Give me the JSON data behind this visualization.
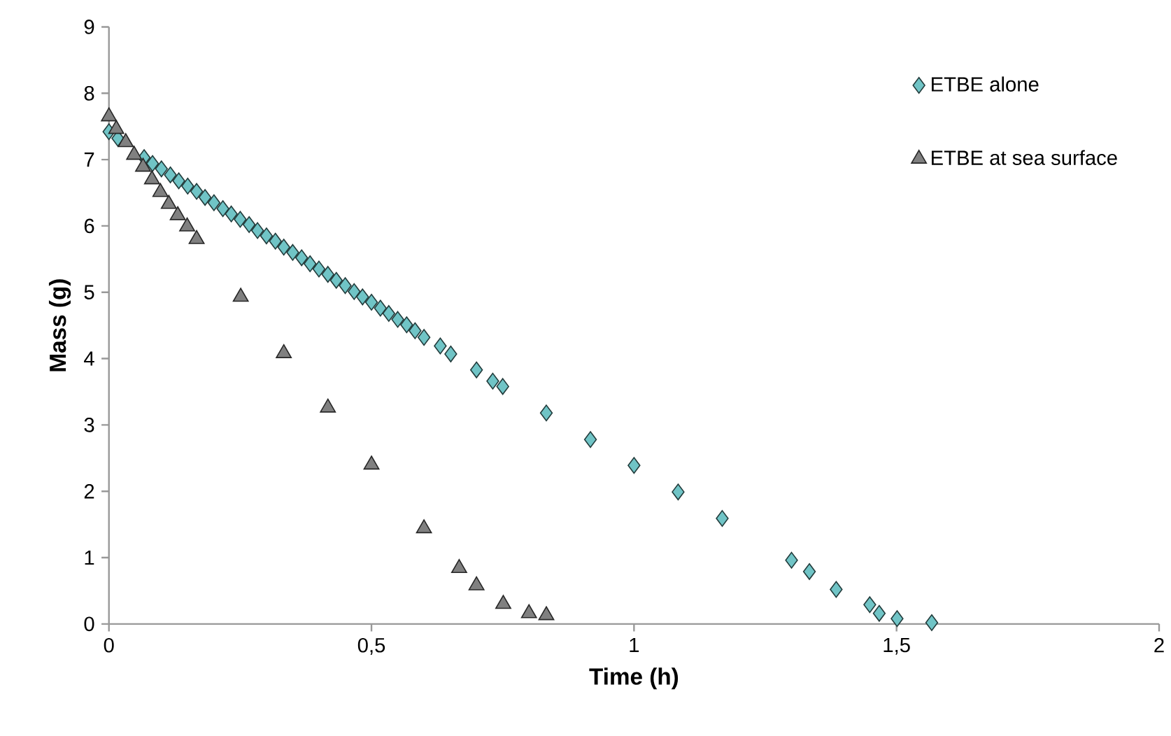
{
  "chart_data": {
    "type": "scatter",
    "xlabel": "Time (h)",
    "ylabel": "Mass (g)",
    "xlim": [
      0,
      2
    ],
    "ylim": [
      0,
      9
    ],
    "xticks": [
      0,
      {
        "value": 0.5,
        "label": "0,5"
      },
      1,
      {
        "value": 1.5,
        "label": "1,5"
      },
      2
    ],
    "yticks": [
      0,
      1,
      2,
      3,
      4,
      5,
      6,
      7,
      8,
      9
    ],
    "grid": false,
    "legend": "top right",
    "series": [
      {
        "name": "ETBE alone",
        "color": "#70c4c6",
        "marker": "diamond",
        "x": [
          0,
          0.017,
          0.033,
          0.05,
          0.067,
          0.083,
          0.1,
          0.117,
          0.133,
          0.15,
          0.167,
          0.183,
          0.2,
          0.217,
          0.233,
          0.25,
          0.267,
          0.283,
          0.3,
          0.317,
          0.333,
          0.35,
          0.367,
          0.383,
          0.4,
          0.417,
          0.433,
          0.45,
          0.467,
          0.483,
          0.5,
          0.517,
          0.533,
          0.55,
          0.567,
          0.583,
          0.6,
          0.631,
          0.651,
          0.7,
          0.731,
          0.75,
          0.833,
          0.917,
          1.0,
          1.084,
          1.168,
          1.3,
          1.334,
          1.385,
          1.449,
          1.467,
          1.501,
          1.567
        ],
        "values": [
          7.42,
          7.32,
          null,
          null,
          7.03,
          6.94,
          6.86,
          6.77,
          6.68,
          6.6,
          6.52,
          6.43,
          6.35,
          6.26,
          6.18,
          6.1,
          6.02,
          5.93,
          5.85,
          5.77,
          5.68,
          5.6,
          5.52,
          5.43,
          5.35,
          5.27,
          5.18,
          5.1,
          5.01,
          4.93,
          4.85,
          4.76,
          4.68,
          4.59,
          4.51,
          4.42,
          4.32,
          4.19,
          4.07,
          3.83,
          3.66,
          3.58,
          3.18,
          2.78,
          2.39,
          1.99,
          1.59,
          0.96,
          0.79,
          0.52,
          0.29,
          0.16,
          0.08,
          0.02
        ]
      },
      {
        "name": "ETBE at sea surface",
        "color": "#808080",
        "marker": "triangle",
        "x": [
          0,
          0.014,
          0.032,
          0.048,
          0.065,
          0.082,
          0.098,
          0.114,
          0.131,
          0.149,
          0.167,
          0.251,
          0.333,
          0.417,
          0.5,
          0.6,
          0.667,
          0.7,
          0.751,
          0.8,
          0.833
        ],
        "values": [
          7.65,
          7.46,
          7.26,
          7.07,
          6.89,
          6.7,
          6.51,
          6.33,
          6.16,
          5.99,
          5.8,
          4.93,
          4.08,
          3.26,
          2.4,
          1.44,
          0.84,
          0.58,
          0.3,
          0.16,
          0.13
        ]
      }
    ]
  }
}
